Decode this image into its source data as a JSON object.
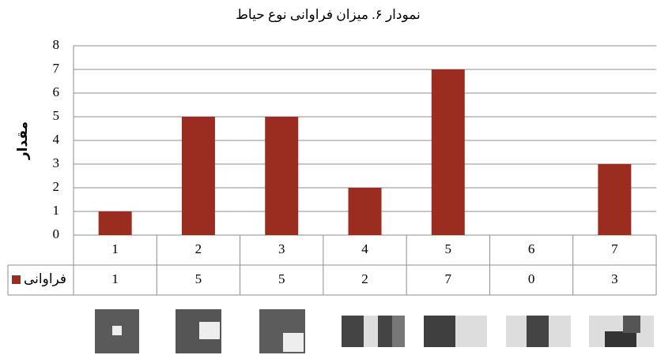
{
  "chart_data": {
    "type": "bar",
    "title": "نمودار ۶. میزان فراوانی نوع حیاط",
    "y_label": "مقدار",
    "categories": [
      "1",
      "2",
      "3",
      "4",
      "5",
      "6",
      "7"
    ],
    "series": [
      {
        "name": "فراوانی",
        "color": "#9b2d20",
        "values": [
          1,
          5,
          5,
          2,
          7,
          0,
          3
        ]
      }
    ],
    "ylim": [
      0,
      8
    ],
    "yticks": [
      0,
      1,
      2,
      3,
      4,
      5,
      6,
      7,
      8
    ],
    "grid": true,
    "legend": "table"
  }
}
